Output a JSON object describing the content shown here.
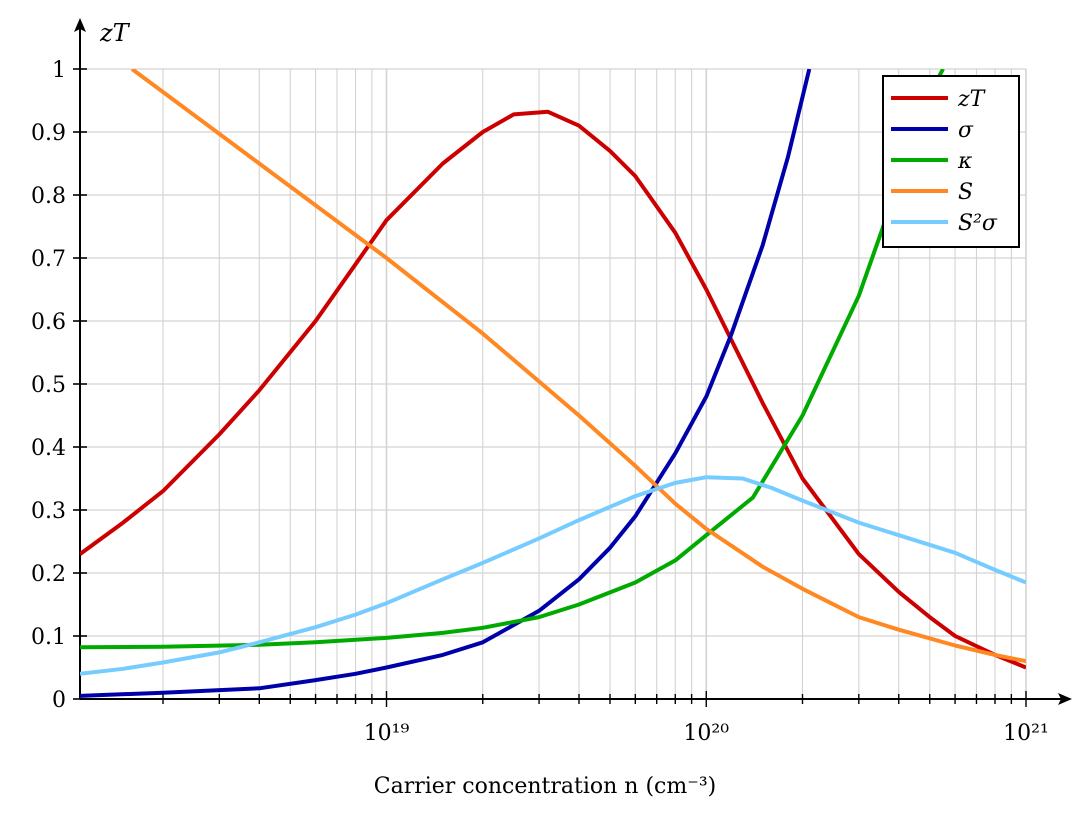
{
  "chart_data": {
    "type": "line",
    "xlabel": "Carrier concentration n (cm⁻³)",
    "ylabel": "zT",
    "xscale": "log",
    "xlim": [
      1.1e+18,
      1e+21
    ],
    "ylim": [
      0,
      1
    ],
    "grid": true,
    "legend_position": "top-right",
    "x_major_ticks": [
      {
        "value": 1e+19,
        "label": "10¹⁹"
      },
      {
        "value": 1e+20,
        "label": "10²⁰"
      },
      {
        "value": 1e+21,
        "label": "10²¹"
      }
    ],
    "y_ticks": [
      0,
      0.1,
      0.2,
      0.3,
      0.4,
      0.5,
      0.6,
      0.7,
      0.8,
      0.9,
      1
    ],
    "y_tick_labels": [
      "0",
      "0.1",
      "0.2",
      "0.3",
      "0.4",
      "0.5",
      "0.6",
      "0.7",
      "0.8",
      "0.9",
      "1"
    ],
    "series": [
      {
        "name": "zT",
        "color": "#cc0000",
        "x": [
          1.1e+18,
          1.5e+18,
          2e+18,
          3e+18,
          4e+18,
          6e+18,
          8e+18,
          1e+19,
          1.5e+19,
          2e+19,
          2.5e+19,
          3.2e+19,
          4e+19,
          5e+19,
          6e+19,
          8e+19,
          1e+20,
          1.5e+20,
          2e+20,
          3e+20,
          4e+20,
          5e+20,
          6e+20,
          8e+20,
          1e+21
        ],
        "y": [
          0.23,
          0.28,
          0.33,
          0.42,
          0.49,
          0.6,
          0.69,
          0.76,
          0.85,
          0.9,
          0.928,
          0.932,
          0.91,
          0.87,
          0.83,
          0.74,
          0.65,
          0.47,
          0.35,
          0.23,
          0.17,
          0.13,
          0.1,
          0.07,
          0.05
        ]
      },
      {
        "name": "σ",
        "color": "#0000aa",
        "x": [
          1.1e+18,
          2e+18,
          4e+18,
          6e+18,
          8e+18,
          1e+19,
          1.5e+19,
          2e+19,
          3e+19,
          4e+19,
          5e+19,
          6e+19,
          8e+19,
          1e+20,
          1.2e+20,
          1.5e+20,
          1.8e+20,
          2.1e+20
        ],
        "y": [
          0.005,
          0.01,
          0.017,
          0.03,
          0.04,
          0.05,
          0.07,
          0.09,
          0.14,
          0.19,
          0.24,
          0.29,
          0.39,
          0.48,
          0.58,
          0.72,
          0.86,
          1.0
        ]
      },
      {
        "name": "κ",
        "color": "#00aa00",
        "x": [
          1.1e+18,
          2e+18,
          4e+18,
          6e+18,
          1e+19,
          1.5e+19,
          2e+19,
          3e+19,
          4e+19,
          6e+19,
          8e+19,
          1e+20,
          1.4e+20,
          2e+20,
          3e+20,
          4e+20,
          5e+20,
          5.5e+20
        ],
        "y": [
          0.082,
          0.083,
          0.086,
          0.09,
          0.097,
          0.105,
          0.113,
          0.13,
          0.15,
          0.185,
          0.22,
          0.26,
          0.32,
          0.45,
          0.64,
          0.82,
          0.96,
          1.0
        ]
      },
      {
        "name": "S",
        "color": "#ff8822",
        "x": [
          1.6e+18,
          1e+19,
          2e+19,
          4e+19,
          6e+19,
          8e+19,
          1e+20,
          1.5e+20,
          2e+20,
          3e+20,
          4e+20,
          6e+20,
          8e+20,
          1e+21
        ],
        "y": [
          1.0,
          0.7,
          0.58,
          0.45,
          0.37,
          0.31,
          0.27,
          0.21,
          0.175,
          0.13,
          0.11,
          0.085,
          0.07,
          0.06
        ]
      },
      {
        "name": "S²σ",
        "color": "#77ccff",
        "x": [
          1.1e+18,
          1.5e+18,
          2e+18,
          3e+18,
          4e+18,
          6e+18,
          8e+18,
          1e+19,
          1.5e+19,
          2e+19,
          3e+19,
          4e+19,
          6e+19,
          8e+19,
          1e+20,
          1.3e+20,
          1.6e+20,
          2e+20,
          3e+20,
          4e+20,
          6e+20,
          8e+20,
          1e+21
        ],
        "y": [
          0.04,
          0.048,
          0.058,
          0.074,
          0.09,
          0.114,
          0.134,
          0.152,
          0.19,
          0.216,
          0.255,
          0.284,
          0.322,
          0.343,
          0.352,
          0.35,
          0.335,
          0.315,
          0.28,
          0.26,
          0.232,
          0.205,
          0.185
        ]
      }
    ]
  }
}
